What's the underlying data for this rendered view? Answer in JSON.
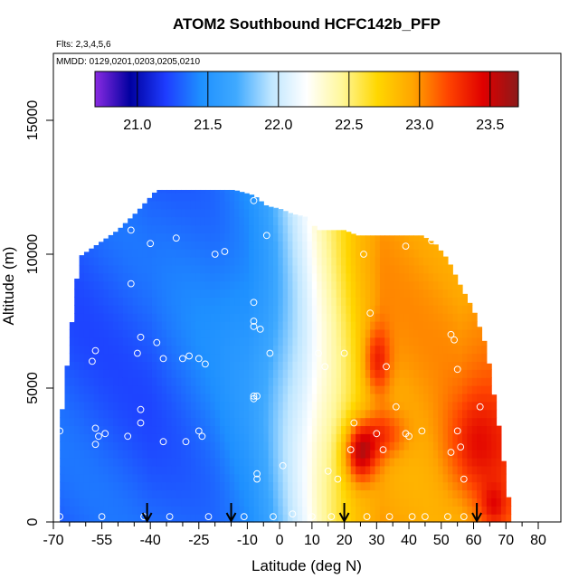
{
  "chart_data": {
    "type": "heatmap",
    "title": "ATOM2 Southbound HCFC142b_PFP",
    "flights_label": "Flts: 2,3,4,5,6",
    "dates_label": "MMDD: 0129,0201,0203,0205,0210",
    "xlabel": "Latitude (deg N)",
    "ylabel": "Altitude (m)",
    "xlim": [
      -70,
      87
    ],
    "ylim": [
      0,
      17500
    ],
    "x_ticks": [
      -70,
      -55,
      -40,
      -25,
      -10,
      0,
      10,
      20,
      30,
      40,
      50,
      60,
      70,
      80
    ],
    "x_tick_labels": [
      "-70",
      "-55",
      "-40",
      "-25",
      "-10",
      "0",
      "10",
      "20",
      "30",
      "40",
      "50",
      "60",
      "70",
      "80"
    ],
    "x_minor_ticks": [
      -65,
      -60,
      -50,
      -45,
      -35,
      -30,
      -20,
      -15,
      -5,
      5,
      15,
      25,
      35,
      45,
      55,
      65,
      75
    ],
    "y_ticks": [
      0,
      5000,
      10000,
      15000
    ],
    "y_tick_labels": [
      "0",
      "5000",
      "10000",
      "15000"
    ],
    "colorbar": {
      "min": 20.7,
      "max": 23.7,
      "ticks": [
        21.0,
        21.5,
        22.0,
        22.5,
        23.0,
        23.5
      ],
      "tick_labels": [
        "21.0",
        "21.5",
        "22.0",
        "22.5",
        "23.0",
        "23.5"
      ],
      "colors": [
        "#8a2be2",
        "#0000a0",
        "#1e3cff",
        "#1e90ff",
        "#3fa9ff",
        "#bfe6ff",
        "#ffffff",
        "#fff79a",
        "#ffd700",
        "#ffa500",
        "#ff4500",
        "#e00000",
        "#8b1a1a"
      ]
    },
    "field": {
      "profile_lat": [
        -68,
        -62,
        -56,
        -50,
        -44,
        -38,
        -32,
        -26,
        -20,
        -14,
        -8,
        -4,
        0,
        4,
        8,
        12,
        16,
        20,
        24,
        28,
        32,
        36,
        40,
        44,
        48,
        52,
        56,
        60,
        64,
        68,
        71
      ],
      "profile_top": [
        3400,
        9900,
        10400,
        10900,
        11600,
        12400,
        12400,
        12400,
        12400,
        12400,
        12200,
        11800,
        11700,
        11500,
        11400,
        10900,
        10900,
        10900,
        10700,
        10700,
        10700,
        10700,
        10700,
        10700,
        10400,
        9800,
        8800,
        7900,
        6500,
        3400,
        700
      ],
      "baseline_lat": [
        -68,
        -40,
        -20,
        -10,
        -4,
        0,
        4,
        8,
        12,
        16,
        20,
        24,
        28,
        32,
        36,
        40,
        44,
        48,
        52,
        56,
        60,
        64,
        68,
        72
      ],
      "baseline_value": [
        21.3,
        21.3,
        21.4,
        21.5,
        21.65,
        21.8,
        21.95,
        22.1,
        22.3,
        22.45,
        22.6,
        22.75,
        22.85,
        22.95,
        22.95,
        22.95,
        22.95,
        22.95,
        22.95,
        22.95,
        23.0,
        23.05,
        23.1,
        23.1
      ],
      "hotspots": [
        {
          "lat": 25,
          "alt": 2600,
          "dlat": 5,
          "dalt": 1100,
          "amp": 0.75
        },
        {
          "lat": 32,
          "alt": 3300,
          "dlat": 7,
          "dalt": 900,
          "amp": 0.35
        },
        {
          "lat": 60,
          "alt": 2800,
          "dlat": 9,
          "dalt": 2000,
          "amp": 0.35
        },
        {
          "lat": 30,
          "alt": 6000,
          "dlat": 4,
          "dalt": 1300,
          "amp": 0.45
        },
        {
          "lat": 66,
          "alt": 600,
          "dlat": 4,
          "dalt": 800,
          "amp": 0.3
        }
      ]
    },
    "samples": [
      {
        "lat": -68,
        "alt": 3400
      },
      {
        "lat": -68,
        "alt": 5800
      },
      {
        "lat": -68,
        "alt": 200
      },
      {
        "lat": -64,
        "alt": 9800
      },
      {
        "lat": -57,
        "alt": 6400
      },
      {
        "lat": -58,
        "alt": 6000
      },
      {
        "lat": -57,
        "alt": 3500
      },
      {
        "lat": -56,
        "alt": 3200
      },
      {
        "lat": -57,
        "alt": 2900
      },
      {
        "lat": -54,
        "alt": 3300
      },
      {
        "lat": -55,
        "alt": 200
      },
      {
        "lat": -47,
        "alt": 3200
      },
      {
        "lat": -46,
        "alt": 10900
      },
      {
        "lat": -46,
        "alt": 8900
      },
      {
        "lat": -44,
        "alt": 12300
      },
      {
        "lat": -43,
        "alt": 6900
      },
      {
        "lat": -44,
        "alt": 6300
      },
      {
        "lat": -43,
        "alt": 4200
      },
      {
        "lat": -43,
        "alt": 3700
      },
      {
        "lat": -42,
        "alt": 200
      },
      {
        "lat": -40,
        "alt": 10400
      },
      {
        "lat": -38,
        "alt": 6700
      },
      {
        "lat": -36,
        "alt": 6100
      },
      {
        "lat": -36,
        "alt": 3000
      },
      {
        "lat": -34,
        "alt": 200
      },
      {
        "lat": -32,
        "alt": 10600
      },
      {
        "lat": -30,
        "alt": 6100
      },
      {
        "lat": -29,
        "alt": 3000
      },
      {
        "lat": -28,
        "alt": 6200
      },
      {
        "lat": -25,
        "alt": 6100
      },
      {
        "lat": -25,
        "alt": 3400
      },
      {
        "lat": -24,
        "alt": 3200
      },
      {
        "lat": -23,
        "alt": 5900
      },
      {
        "lat": -20,
        "alt": 10000
      },
      {
        "lat": -22,
        "alt": 200
      },
      {
        "lat": -17,
        "alt": 10100
      },
      {
        "lat": -11,
        "alt": 200
      },
      {
        "lat": -8,
        "alt": 12000
      },
      {
        "lat": -8,
        "alt": 8200
      },
      {
        "lat": -8,
        "alt": 7500
      },
      {
        "lat": -8,
        "alt": 7300
      },
      {
        "lat": -6,
        "alt": 7200
      },
      {
        "lat": -8,
        "alt": 4700
      },
      {
        "lat": -8,
        "alt": 4600
      },
      {
        "lat": -7,
        "alt": 4700
      },
      {
        "lat": -7,
        "alt": 1800
      },
      {
        "lat": -7,
        "alt": 1600
      },
      {
        "lat": -4,
        "alt": 10700
      },
      {
        "lat": -3,
        "alt": 6300
      },
      {
        "lat": 1,
        "alt": 2100
      },
      {
        "lat": -2,
        "alt": 200
      },
      {
        "lat": 12,
        "alt": 6300
      },
      {
        "lat": 14,
        "alt": 5800
      },
      {
        "lat": 10,
        "alt": 200
      },
      {
        "lat": 15,
        "alt": 1900
      },
      {
        "lat": 18,
        "alt": 1600
      },
      {
        "lat": 23,
        "alt": 3700
      },
      {
        "lat": 22,
        "alt": 2700
      },
      {
        "lat": 20,
        "alt": 6300
      },
      {
        "lat": 26,
        "alt": 10000
      },
      {
        "lat": 28,
        "alt": 7800
      },
      {
        "lat": 30,
        "alt": 3300
      },
      {
        "lat": 32,
        "alt": 2700
      },
      {
        "lat": 33,
        "alt": 5800
      },
      {
        "lat": 36,
        "alt": 4300
      },
      {
        "lat": 39,
        "alt": 10300
      },
      {
        "lat": 39,
        "alt": 3300
      },
      {
        "lat": 44,
        "alt": 3400
      },
      {
        "lat": 40,
        "alt": 3200
      },
      {
        "lat": 41,
        "alt": 200
      },
      {
        "lat": 47,
        "alt": 10500
      },
      {
        "lat": 51,
        "alt": 10300
      },
      {
        "lat": 53,
        "alt": 7000
      },
      {
        "lat": 54,
        "alt": 6800
      },
      {
        "lat": 55,
        "alt": 5700
      },
      {
        "lat": 55,
        "alt": 3400
      },
      {
        "lat": 56,
        "alt": 2800
      },
      {
        "lat": 53,
        "alt": 2600
      },
      {
        "lat": 57,
        "alt": 1600
      },
      {
        "lat": 62,
        "alt": 4300
      },
      {
        "lat": 27,
        "alt": 200
      },
      {
        "lat": 34,
        "alt": 200
      },
      {
        "lat": 45,
        "alt": 200
      },
      {
        "lat": 52,
        "alt": 200
      },
      {
        "lat": 57,
        "alt": 200
      },
      {
        "lat": 4,
        "alt": 300
      },
      {
        "lat": 16,
        "alt": 200
      }
    ],
    "arrows_lat": [
      -41,
      -15,
      20,
      61
    ]
  }
}
